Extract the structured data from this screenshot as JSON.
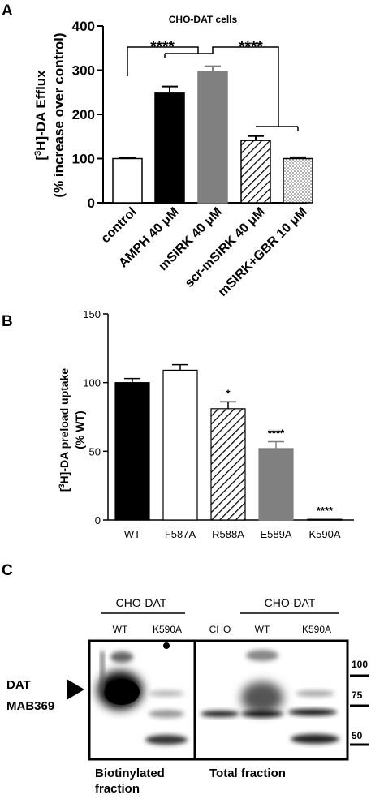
{
  "panels": {
    "a_label": "A",
    "b_label": "B",
    "c_label": "C"
  },
  "chart_data": [
    {
      "panel": "A",
      "type": "bar",
      "title": "CHO-DAT cells",
      "ylabel_line1": "[3H]-DA Efflux",
      "ylabel_line2": "(% increase over control)",
      "ylim": [
        0,
        400
      ],
      "yticks": [
        "0",
        "100",
        "200",
        "300",
        "400"
      ],
      "categories": [
        "control",
        "AMPH 40 μM",
        "mSIRK 40 μM",
        "scr-mSIRK 40 μM",
        "mSIRK+GBR 10 μM"
      ],
      "values": [
        100,
        248,
        296,
        141,
        100
      ],
      "errors": [
        2,
        15,
        13,
        10,
        3
      ],
      "fills": [
        "white",
        "black",
        "gray",
        "hatch",
        "dots"
      ],
      "significance": [
        "****",
        "****"
      ]
    },
    {
      "panel": "B",
      "type": "bar",
      "ylabel_line1": "[3H]-DA preload uptake",
      "ylabel_line2": "(% WT)",
      "ylim": [
        0,
        150
      ],
      "yticks": [
        "0",
        "50",
        "100",
        "150"
      ],
      "categories": [
        "WT",
        "F587A",
        "R588A",
        "E589A",
        "K590A"
      ],
      "values": [
        100,
        109,
        81,
        52,
        0.5
      ],
      "errors": [
        3,
        4,
        5,
        5,
        0
      ],
      "fills": [
        "black",
        "white",
        "hatch",
        "gray",
        "black"
      ],
      "significance": [
        "",
        "",
        "*",
        "****",
        "****"
      ]
    }
  ],
  "blot": {
    "left_group": "CHO-DAT",
    "left_lanes": [
      "WT",
      "K590A"
    ],
    "right_group": "CHO-DAT",
    "right_lanes": [
      "CHO",
      "WT",
      "K590A"
    ],
    "protein_label_1": "DAT",
    "protein_label_2": "MAB369",
    "markers": [
      "100",
      "75",
      "50"
    ],
    "caption_left_1": "Biotinylated",
    "caption_left_2": "fraction",
    "caption_right": "Total fraction"
  }
}
